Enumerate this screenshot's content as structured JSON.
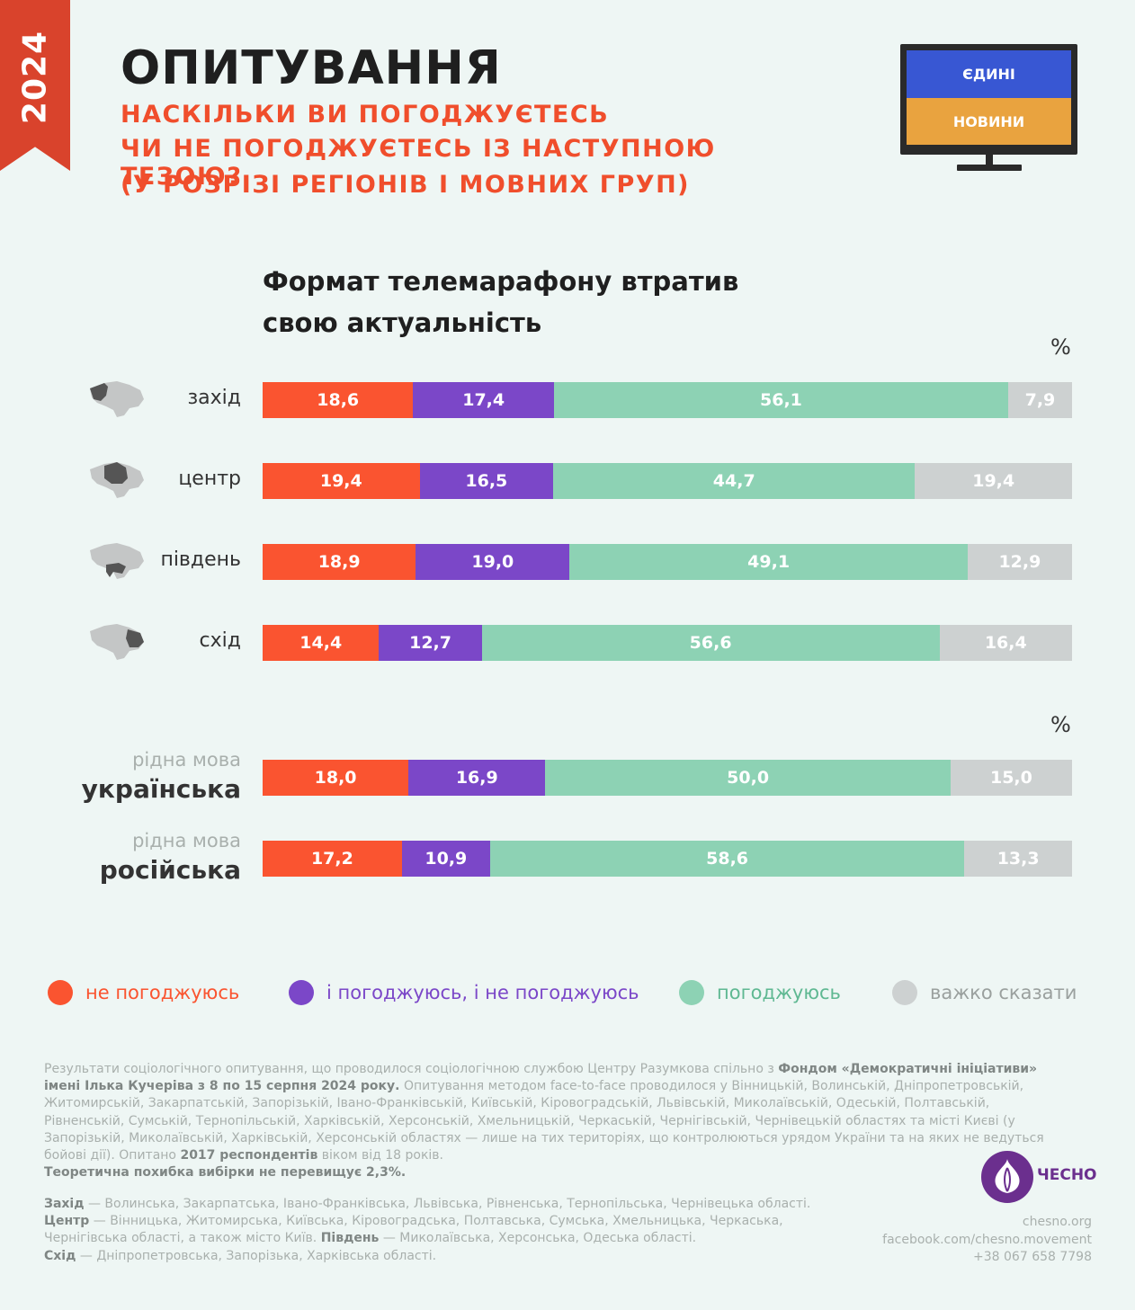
{
  "ribbon": {
    "year": "2024"
  },
  "header": {
    "title": "ОПИТУВАННЯ",
    "subtitle_lines": [
      "НАСКІЛЬКИ ВИ ПОГОДЖУЄТЕСЬ",
      "ЧИ НЕ ПОГОДЖУЄТЕСЬ ІЗ НАСТУПНОЮ ТЕЗОЮ?",
      "(У РОЗРІЗІ РЕГІОНІВ І МОВНИХ ГРУП)"
    ]
  },
  "tv_logo": {
    "line1": "ЄДИНІ",
    "line2": "НОВИНИ",
    "top_color": "#3857d3",
    "bottom_color": "#e9a33f"
  },
  "chart": {
    "title_lines": [
      "Формат телемарафону втратив",
      "свою актуальність"
    ],
    "unit": "%"
  },
  "chart_data": {
    "type": "bar",
    "orientation": "horizontal",
    "stacked": true,
    "title": "Формат телемарафону втратив свою актуальність",
    "unit": "%",
    "series": [
      {
        "name": "не погоджуюсь",
        "color": "#fa5430"
      },
      {
        "name": "і погоджуюсь, і не погоджуюсь",
        "color": "#7b47c8"
      },
      {
        "name": "погоджуюсь",
        "color": "#8dd2b4"
      },
      {
        "name": "важко сказати",
        "color": "#cdd1d1"
      }
    ],
    "groups": [
      {
        "rows": [
          {
            "label": "захід",
            "icon": "map-west-icon",
            "values": [
              "18,6",
              "17,4",
              "56,1",
              "7,9"
            ]
          },
          {
            "label": "центр",
            "icon": "map-center-icon",
            "values": [
              "19,4",
              "16,5",
              "44,7",
              "19,4"
            ]
          },
          {
            "label": "південь",
            "icon": "map-south-icon",
            "values": [
              "18,9",
              "19,0",
              "49,1",
              "12,9"
            ]
          },
          {
            "label": "схід",
            "icon": "map-east-icon",
            "values": [
              "14,4",
              "12,7",
              "56,6",
              "16,4"
            ]
          }
        ]
      },
      {
        "rows": [
          {
            "label_top": "рідна мова",
            "label": "українська",
            "values": [
              "18,0",
              "16,9",
              "50,0",
              "15,0"
            ]
          },
          {
            "label_top": "рідна мова",
            "label": "російська",
            "values": [
              "17,2",
              "10,9",
              "58,6",
              "13,3"
            ]
          }
        ]
      }
    ]
  },
  "legend": [
    {
      "label": "не погоджуюсь",
      "color": "#fa5430"
    },
    {
      "label": "і погоджуюсь, і не погоджуюсь",
      "color": "#7b47c8"
    },
    {
      "label": "погоджуюсь",
      "color": "#8dd2b4"
    },
    {
      "label": "важко сказати",
      "color": "#cdd1d1"
    }
  ],
  "footnote": {
    "p1": "Результати соціологічного опитування, що проводилося соціологічною службою Центру Разумкова спільно з ",
    "b1": "Фондом «Демократичні ініціативи» імені Ілька Кучеріва з 8 по 15 серпня 2024 року.",
    "p2": " Опитування методом face-to-face проводилося у Вінницькій, Волинській, Дніпропетровській, Житомирській, Закарпатській, Запорізькій, Івано-Франківській, Київській, Кіровоградській, Львівській, Миколаївській, Одеській, Полтавській, Рівненській, Сумській, Тернопільській, Харківській, Херсонській, Хмельницькій, Черкаській, Чернігівській, Чернівецькій областях та місті Києві (у Запорізькій, Миколаївській, Харківській, Херсонській областях — лише на тих територіях, що контролюються урядом України та на яких не ведуться бойові дії). Опитано ",
    "b2": "2017 респондентів",
    "p3": " віком від 18 років.",
    "b3": "Теоретична похибка вибірки не перевищує 2,3%."
  },
  "regions": {
    "west_b": "Захід",
    "west": " — Волинська, Закарпатська, Івано-Франківська, Львівська, Рівненська, Тернопільська, Чернівецька області.",
    "center_b": "Центр",
    "center": " — Вінницька, Житомирська, Київська, Кіровоградська, Полтавська, Сумська, Хмельницька, Черкаська, Чернігівська області, а також місто Київ. ",
    "south_b": "Південь",
    "south": " — Миколаївська, Херсонська, Одеська області.",
    "east_b": "Схід",
    "east": " — Дніпропетровська, Запорізька, Харківська області."
  },
  "brand": {
    "name": "ЧЕСНО",
    "site": "chesno.org",
    "facebook": "facebook.com/chesno.movement",
    "phone": "+38 067 658 7798"
  }
}
